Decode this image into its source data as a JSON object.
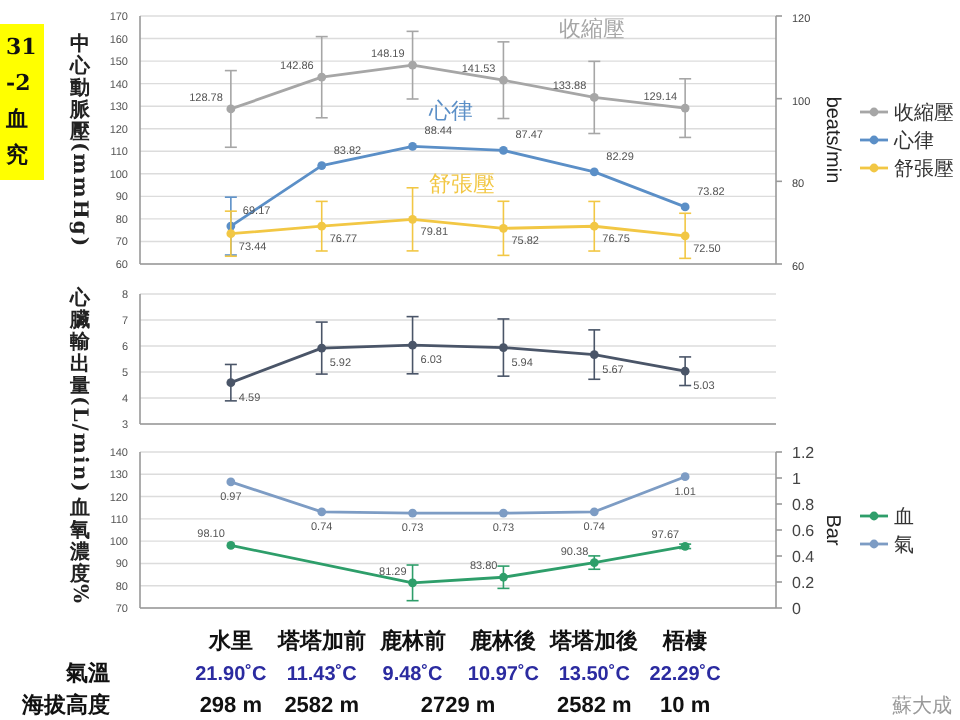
{
  "chart_data": [
    {
      "type": "line",
      "categories": [
        null,
        null,
        null,
        null,
        null,
        null
      ],
      "tick_labels": "y",
      "ylabel": "中心動脈壓 (mmHg)",
      "y2label": "beats/min",
      "ylim": [
        60,
        170
      ],
      "yticks": [
        60,
        70,
        80,
        90,
        100,
        110,
        120,
        130,
        140,
        150,
        160,
        170
      ],
      "y2lim": [
        60,
        120
      ],
      "y2ticks": [
        60,
        80,
        100,
        120
      ],
      "grid": "y",
      "marker": "circle",
      "legend": "right",
      "series": [
        {
          "name": "收縮壓",
          "color": "#a6a6a6",
          "values": [
            128.78,
            142.86,
            148.19,
            141.53,
            133.88,
            129.14
          ],
          "value_labels": [
            "128.78",
            "142.86",
            "148.19",
            "141.53",
            "133.88",
            "129.14"
          ],
          "errors": [
            17,
            18,
            15,
            17,
            16,
            13
          ]
        },
        {
          "name": "心律",
          "color": "#5b8fc7",
          "axis": "y2",
          "values": [
            69.17,
            83.82,
            88.44,
            87.47,
            82.29,
            73.82
          ],
          "value_labels": [
            "69.17",
            "83.82",
            "88.44",
            "87.47",
            "82.29",
            "73.82"
          ],
          "errors": [
            7,
            null,
            null,
            null,
            null,
            null
          ]
        },
        {
          "name": "舒張壓",
          "color": "#f2c744",
          "values": [
            73.44,
            76.77,
            79.81,
            75.82,
            76.75,
            72.5
          ],
          "value_labels": [
            "73.44",
            "76.77",
            "79.81",
            "75.82",
            "76.75",
            "72.50"
          ],
          "errors": [
            10,
            11,
            14,
            12,
            11,
            10
          ]
        }
      ],
      "annotations": [
        "31",
        "-2",
        "血",
        "究"
      ]
    },
    {
      "type": "line",
      "categories": [
        null,
        null,
        null,
        null,
        null,
        null
      ],
      "tick_labels": "y",
      "ylabel": "心臟輸出量 (L/min)",
      "ylim": [
        3,
        8
      ],
      "yticks": [
        3,
        4,
        5,
        6,
        7,
        8
      ],
      "grid": "y",
      "marker": "circle",
      "data_labels": true,
      "series": [
        {
          "color": "#4a5568",
          "values": [
            4.59,
            5.92,
            6.03,
            5.94,
            5.67,
            5.03
          ],
          "errors": [
            0.7,
            1.0,
            1.1,
            1.1,
            0.95,
            0.55
          ]
        }
      ]
    },
    {
      "type": "line",
      "categories": [
        "水里",
        "塔塔加前",
        "鹿林前",
        "鹿林後",
        "塔塔加後",
        "梧棲"
      ],
      "ylabel": "血氧濃度%",
      "y2label": "Bar",
      "ylim": [
        70,
        140
      ],
      "yticks": [
        70,
        80,
        90,
        100,
        110,
        120,
        130,
        140
      ],
      "y2lim": [
        0,
        1.2
      ],
      "y2ticks": [
        0,
        0.2,
        0.4,
        0.6,
        0.8,
        1,
        1.2
      ],
      "grid": "y",
      "marker": "circle",
      "legend": "right",
      "series": [
        {
          "name": "血",
          "color": "#2e9e6a",
          "values": [
            98.1,
            null,
            81.29,
            83.8,
            90.38,
            97.67
          ],
          "value_labels": [
            "98.10",
            null,
            "81.29",
            "83.80",
            "90.38",
            "97.67"
          ],
          "errors": [
            null,
            null,
            8,
            5,
            3,
            1
          ]
        },
        {
          "name": "氣",
          "color": "#7d9cc4",
          "axis": "y2",
          "values": [
            0.97,
            0.74,
            0.73,
            0.73,
            0.74,
            1.01
          ],
          "value_labels": [
            "0.97",
            "0.74",
            "0.73",
            "0.73",
            "0.74",
            "1.01"
          ]
        }
      ],
      "annotations": [
        "氣溫",
        "21.90˚C",
        "11.43˚C",
        "9.48˚C",
        "10.97˚C",
        "13.50˚C",
        "22.29˚C",
        "海拔高度",
        "298 m",
        "2582 m",
        "2729 m",
        "2582 m",
        "10 m",
        "蘇大成"
      ]
    }
  ]
}
